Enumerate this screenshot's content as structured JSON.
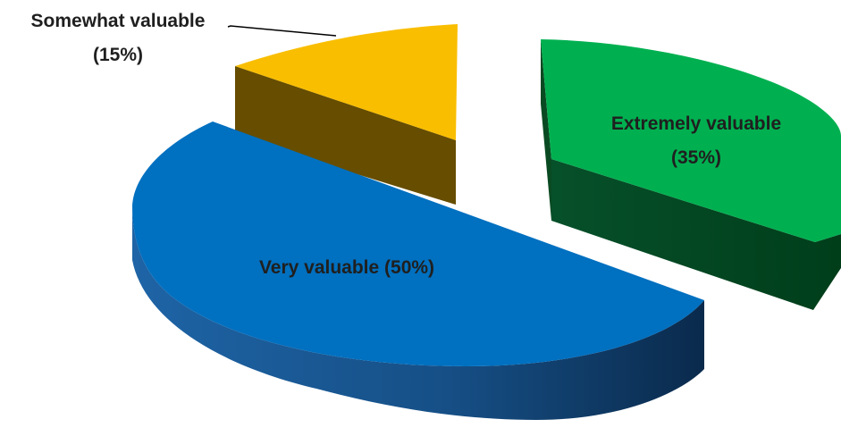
{
  "chart_data": {
    "type": "pie",
    "style": "3d-exploded",
    "slices": [
      {
        "name": "Extremely valuable",
        "value": 35,
        "color": "#00B050",
        "side_color": "#004B22"
      },
      {
        "name": "Very valuable",
        "value": 50,
        "color": "#0070C0",
        "side_color": "#124C7E"
      },
      {
        "name": "Somewhat valuable",
        "value": 15,
        "color": "#F9BE00",
        "side_color": "#654D00"
      }
    ],
    "labels": {
      "extremely": {
        "line1": "Extremely valuable",
        "line2": "(35%)"
      },
      "very": {
        "line1": "Very valuable (50%)"
      },
      "somewhat": {
        "line1": "Somewhat valuable",
        "line2": "(15%)"
      }
    },
    "legend": "none"
  }
}
